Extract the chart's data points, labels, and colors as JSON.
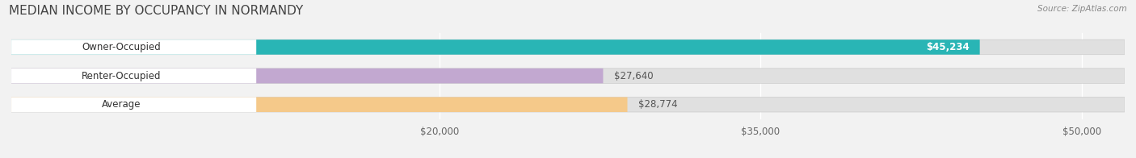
{
  "title": "MEDIAN INCOME BY OCCUPANCY IN NORMANDY",
  "source": "Source: ZipAtlas.com",
  "categories": [
    "Owner-Occupied",
    "Renter-Occupied",
    "Average"
  ],
  "values": [
    45234,
    27640,
    28774
  ],
  "bar_colors": [
    "#29b5b5",
    "#c2a8d0",
    "#f5c98a"
  ],
  "background_color": "#f2f2f2",
  "bar_bg_color": "#e0e0e0",
  "value_labels": [
    "$45,234",
    "$27,640",
    "$28,774"
  ],
  "xmin": 0,
  "xmax": 52000,
  "xticks": [
    20000,
    35000,
    50000
  ],
  "xtick_labels": [
    "$20,000",
    "$35,000",
    "$50,000"
  ],
  "title_fontsize": 11,
  "label_fontsize": 8.5,
  "value_fontsize": 8.5,
  "tick_fontsize": 8.5,
  "bar_height": 0.52,
  "figsize": [
    14.06,
    1.96
  ],
  "dpi": 100
}
